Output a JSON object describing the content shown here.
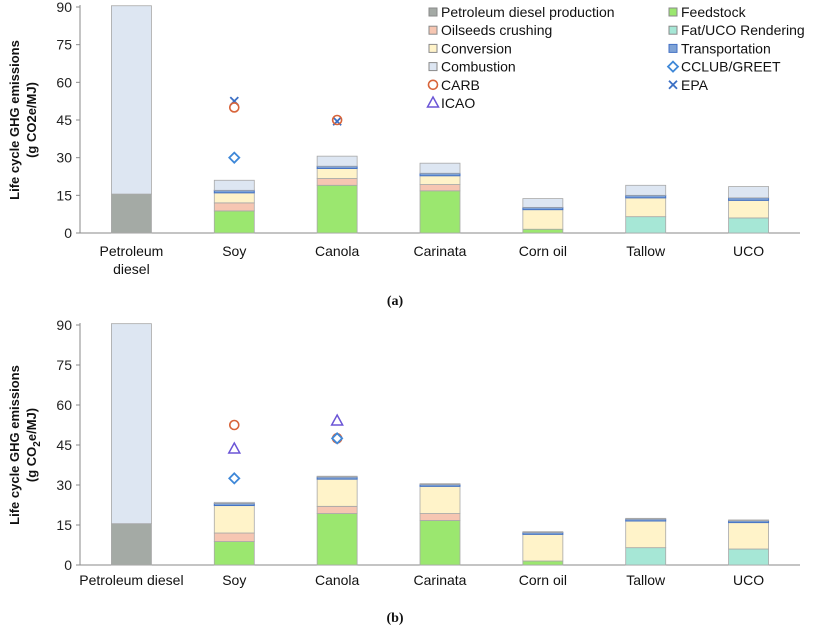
{
  "colors": {
    "Petroleum diesel production": "#a4aaa5",
    "Feedstock": "#9be76f",
    "Oilseeds crushing": "#f6c6b2",
    "Fat/UCO Rendering": "#a6e7d6",
    "Conversion": "#fff3c9",
    "Transportation": "#7fa3d6",
    "Combustion": "#dde6f2",
    "CARB": "#d8643a",
    "CCLUB/GREET": "#3f88d8",
    "ICAO": "#6b55d6",
    "EPA": "#3b6fc4",
    "bar_border": "#a8a8a8",
    "transport_border": "#4472c4"
  },
  "legend": {
    "items": [
      {
        "label": "Petroleum diesel production",
        "kind": "box",
        "icon": "petroleum-swatch"
      },
      {
        "label": "Feedstock",
        "kind": "box",
        "icon": "feedstock-swatch"
      },
      {
        "label": "Oilseeds crushing",
        "kind": "box",
        "icon": "crushing-swatch"
      },
      {
        "label": "Fat/UCO Rendering",
        "kind": "box",
        "icon": "rendering-swatch"
      },
      {
        "label": "Conversion",
        "kind": "box",
        "icon": "conversion-swatch"
      },
      {
        "label": "Transportation",
        "kind": "box",
        "icon": "transportation-swatch"
      },
      {
        "label": "Combustion",
        "kind": "box",
        "icon": "combustion-swatch"
      },
      {
        "label": "CCLUB/GREET",
        "kind": "diamond",
        "icon": "diamond-marker"
      },
      {
        "label": "CARB",
        "kind": "circle",
        "icon": "circle-marker"
      },
      {
        "label": "EPA",
        "kind": "cross",
        "icon": "cross-marker"
      },
      {
        "label": "ICAO",
        "kind": "triangle",
        "icon": "triangle-marker"
      }
    ]
  },
  "chart_data": [
    {
      "type": "bar",
      "stacked": true,
      "panel_label": "(a)",
      "ylabel_line1": "Life cycle GHG emissions",
      "ylabel_line2": "(g CO2e/MJ)",
      "ylim": [
        0,
        90
      ],
      "yticks": [
        0,
        15,
        30,
        45,
        60,
        75,
        90
      ],
      "grid": false,
      "legend_position": "top-right",
      "categories": [
        "Petroleum\ndiesel",
        "Soy",
        "Canola",
        "Carinata",
        "Corn oil",
        "Tallow",
        "UCO"
      ],
      "series": [
        {
          "name": "Petroleum diesel production",
          "values": [
            15.5,
            0,
            0,
            0,
            0,
            0,
            0
          ]
        },
        {
          "name": "Feedstock",
          "values": [
            0,
            8.8,
            19.0,
            16.8,
            1.5,
            0,
            0
          ]
        },
        {
          "name": "Fat/UCO Rendering",
          "values": [
            0,
            0,
            0,
            0,
            0,
            6.5,
            6.0
          ]
        },
        {
          "name": "Oilseeds crushing",
          "values": [
            0,
            3.2,
            2.7,
            2.5,
            0,
            0,
            0
          ]
        },
        {
          "name": "Conversion",
          "values": [
            0,
            4.0,
            4.0,
            3.5,
            7.8,
            7.5,
            7.0
          ]
        },
        {
          "name": "Transportation",
          "values": [
            0,
            1.0,
            0.9,
            1.0,
            0.9,
            1.0,
            1.0
          ]
        },
        {
          "name": "Combustion",
          "values": [
            75.0,
            4.0,
            4.0,
            4.0,
            3.5,
            4.0,
            4.5
          ]
        }
      ],
      "markers": [
        {
          "series": "EPA",
          "category": "Soy",
          "value": 52.5
        },
        {
          "series": "CARB",
          "category": "Soy",
          "value": 50.0
        },
        {
          "series": "CCLUB/GREET",
          "category": "Soy",
          "value": 30.0
        },
        {
          "series": "EPA",
          "category": "Canola",
          "value": 44.5
        },
        {
          "series": "CARB",
          "category": "Canola",
          "value": 45.0
        }
      ]
    },
    {
      "type": "bar",
      "stacked": true,
      "panel_label": "(b)",
      "ylabel_line1": "Life cycle GHG emissions",
      "ylabel_line2": "(g CO",
      "ylabel_sub": "2",
      "ylabel_line2_end": "e/MJ)",
      "ylim": [
        0,
        90
      ],
      "yticks": [
        0,
        15,
        30,
        45,
        60,
        75,
        90
      ],
      "grid": false,
      "categories": [
        "Petroleum diesel",
        "Soy",
        "Canola",
        "Carinata",
        "Corn oil",
        "Tallow",
        "UCO"
      ],
      "series": [
        {
          "name": "Petroleum diesel production",
          "values": [
            15.5,
            0,
            0,
            0,
            0,
            0,
            0
          ]
        },
        {
          "name": "Feedstock",
          "values": [
            0,
            8.8,
            19.3,
            16.7,
            1.5,
            0,
            0
          ]
        },
        {
          "name": "Fat/UCO Rendering",
          "values": [
            0,
            0,
            0,
            0,
            0,
            6.5,
            6.0
          ]
        },
        {
          "name": "Oilseeds crushing",
          "values": [
            0,
            3.2,
            2.7,
            2.6,
            0,
            0,
            0
          ]
        },
        {
          "name": "Conversion",
          "values": [
            0,
            10.3,
            10.2,
            10.2,
            10.0,
            10.0,
            9.9
          ]
        },
        {
          "name": "Transportation",
          "values": [
            0,
            0.8,
            0.8,
            0.7,
            0.7,
            0.7,
            0.7
          ]
        },
        {
          "name": "Combustion",
          "values": [
            75.0,
            0.4,
            0.3,
            0.3,
            0.3,
            0.3,
            0.3
          ]
        }
      ],
      "markers": [
        {
          "series": "CARB",
          "category": "Soy",
          "value": 52.5
        },
        {
          "series": "ICAO",
          "category": "Soy",
          "value": 43.5
        },
        {
          "series": "CCLUB/GREET",
          "category": "Soy",
          "value": 32.5
        },
        {
          "series": "ICAO",
          "category": "Canola",
          "value": 54.0
        },
        {
          "series": "CARB",
          "category": "Canola",
          "value": 47.5
        },
        {
          "series": "CCLUB/GREET",
          "category": "Canola",
          "value": 47.5
        }
      ]
    }
  ]
}
